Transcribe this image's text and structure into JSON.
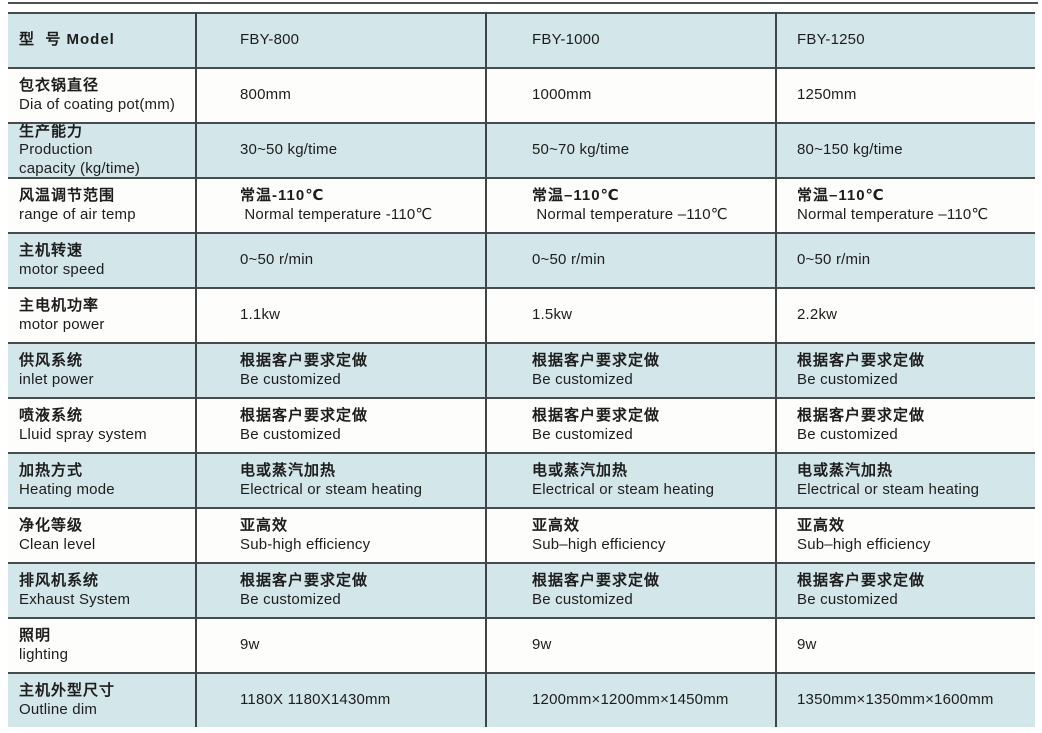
{
  "colors": {
    "row_blue": "#d3e6e9",
    "row_white": "#fdfdfb",
    "grid_border": "#474d4f",
    "text": "#1d1d1d"
  },
  "table": {
    "rows": [
      {
        "label": {
          "lines": [
            {
              "t": "型  号 Model",
              "b": true
            }
          ]
        },
        "cells": [
          {
            "lines": [
              {
                "t": "FBY-800",
                "b": false
              }
            ]
          },
          {
            "lines": [
              {
                "t": "FBY-1000",
                "b": false
              }
            ]
          },
          {
            "lines": [
              {
                "t": "FBY-1250",
                "b": false
              }
            ]
          }
        ]
      },
      {
        "label": {
          "lines": [
            {
              "t": "包衣锅直径",
              "b": true
            },
            {
              "t": "Dia of coating pot(mm)",
              "b": false
            }
          ]
        },
        "cells": [
          {
            "lines": [
              {
                "t": "800mm",
                "b": false
              }
            ]
          },
          {
            "lines": [
              {
                "t": "1000mm",
                "b": false
              }
            ]
          },
          {
            "lines": [
              {
                "t": "1250mm",
                "b": false
              }
            ]
          }
        ]
      },
      {
        "label": {
          "lines": [
            {
              "t": "生产能力",
              "b": true
            },
            {
              "t": "Production",
              "b": false
            },
            {
              "t": "capacity (kg/time)",
              "b": false
            }
          ]
        },
        "cells": [
          {
            "lines": [
              {
                "t": "30~50 kg/time",
                "b": false
              }
            ]
          },
          {
            "lines": [
              {
                "t": "50~70 kg/time",
                "b": false
              }
            ]
          },
          {
            "lines": [
              {
                "t": "80~150 kg/time",
                "b": false
              }
            ]
          }
        ]
      },
      {
        "label": {
          "lines": [
            {
              "t": "风温调节范围",
              "b": true
            },
            {
              "t": "range of air temp",
              "b": false
            }
          ]
        },
        "cells": [
          {
            "lines": [
              {
                "t": "常温-110℃",
                "b": true
              },
              {
                "t": " Normal temperature -110℃",
                "b": false
              }
            ]
          },
          {
            "lines": [
              {
                "t": "常温–110℃",
                "b": true
              },
              {
                "t": " Normal temperature –110℃",
                "b": false
              }
            ]
          },
          {
            "lines": [
              {
                "t": "常温–110℃",
                "b": true
              },
              {
                "t": "Normal temperature –110℃",
                "b": false
              }
            ]
          }
        ]
      },
      {
        "label": {
          "lines": [
            {
              "t": "主机转速",
              "b": true
            },
            {
              "t": "motor speed",
              "b": false
            }
          ]
        },
        "cells": [
          {
            "lines": [
              {
                "t": "0~50 r/min",
                "b": false
              }
            ]
          },
          {
            "lines": [
              {
                "t": "0~50 r/min",
                "b": false
              }
            ]
          },
          {
            "lines": [
              {
                "t": "0~50 r/min",
                "b": false
              }
            ]
          }
        ]
      },
      {
        "label": {
          "lines": [
            {
              "t": "主电机功率",
              "b": true
            },
            {
              "t": "motor power",
              "b": false
            }
          ]
        },
        "cells": [
          {
            "lines": [
              {
                "t": "1.1kw",
                "b": false
              }
            ]
          },
          {
            "lines": [
              {
                "t": "1.5kw",
                "b": false
              }
            ]
          },
          {
            "lines": [
              {
                "t": "2.2kw",
                "b": false
              }
            ]
          }
        ]
      },
      {
        "label": {
          "lines": [
            {
              "t": "供风系统",
              "b": true
            },
            {
              "t": "inlet power",
              "b": false
            }
          ]
        },
        "cells": [
          {
            "lines": [
              {
                "t": "根据客户要求定做",
                "b": true
              },
              {
                "t": "Be customized",
                "b": false
              }
            ]
          },
          {
            "lines": [
              {
                "t": "根据客户要求定做",
                "b": true
              },
              {
                "t": "Be customized",
                "b": false
              }
            ]
          },
          {
            "lines": [
              {
                "t": "根据客户要求定做",
                "b": true
              },
              {
                "t": "Be customized",
                "b": false
              }
            ]
          }
        ]
      },
      {
        "label": {
          "lines": [
            {
              "t": "喷液系统",
              "b": true
            },
            {
              "t": "Lluid spray system",
              "b": false
            }
          ]
        },
        "cells": [
          {
            "lines": [
              {
                "t": "根据客户要求定做",
                "b": true
              },
              {
                "t": "Be customized",
                "b": false
              }
            ]
          },
          {
            "lines": [
              {
                "t": "根据客户要求定做",
                "b": true
              },
              {
                "t": "Be customized",
                "b": false
              }
            ]
          },
          {
            "lines": [
              {
                "t": "根据客户要求定做",
                "b": true
              },
              {
                "t": "Be customized",
                "b": false
              }
            ]
          }
        ]
      },
      {
        "label": {
          "lines": [
            {
              "t": "加热方式",
              "b": true
            },
            {
              "t": "Heating mode",
              "b": false
            }
          ]
        },
        "cells": [
          {
            "lines": [
              {
                "t": "电或蒸汽加热",
                "b": true
              },
              {
                "t": "Electrical or steam heating",
                "b": false
              }
            ]
          },
          {
            "lines": [
              {
                "t": "电或蒸汽加热",
                "b": true
              },
              {
                "t": "Electrical or steam heating",
                "b": false
              }
            ]
          },
          {
            "lines": [
              {
                "t": "电或蒸汽加热",
                "b": true
              },
              {
                "t": "Electrical or steam heating",
                "b": false
              }
            ]
          }
        ]
      },
      {
        "label": {
          "lines": [
            {
              "t": "净化等级",
              "b": true
            },
            {
              "t": "Clean level",
              "b": false
            }
          ]
        },
        "cells": [
          {
            "lines": [
              {
                "t": "亚高效",
                "b": true
              },
              {
                "t": "Sub-high efficiency",
                "b": false
              }
            ]
          },
          {
            "lines": [
              {
                "t": "亚高效",
                "b": true
              },
              {
                "t": "Sub–high efficiency",
                "b": false
              }
            ]
          },
          {
            "lines": [
              {
                "t": "亚高效",
                "b": true
              },
              {
                "t": "Sub–high efficiency",
                "b": false
              }
            ]
          }
        ]
      },
      {
        "label": {
          "lines": [
            {
              "t": "排风机系统",
              "b": true
            },
            {
              "t": "Exhaust System",
              "b": false
            }
          ]
        },
        "cells": [
          {
            "lines": [
              {
                "t": "根据客户要求定做",
                "b": true
              },
              {
                "t": "Be customized",
                "b": false
              }
            ]
          },
          {
            "lines": [
              {
                "t": "根据客户要求定做",
                "b": true
              },
              {
                "t": "Be customized",
                "b": false
              }
            ]
          },
          {
            "lines": [
              {
                "t": "根据客户要求定做",
                "b": true
              },
              {
                "t": "Be customized",
                "b": false
              }
            ]
          }
        ]
      },
      {
        "label": {
          "lines": [
            {
              "t": "照明",
              "b": true
            },
            {
              "t": "lighting",
              "b": false
            }
          ]
        },
        "cells": [
          {
            "lines": [
              {
                "t": "9w",
                "b": false
              }
            ]
          },
          {
            "lines": [
              {
                "t": "9w",
                "b": false
              }
            ]
          },
          {
            "lines": [
              {
                "t": "9w",
                "b": false
              }
            ]
          }
        ]
      },
      {
        "label": {
          "lines": [
            {
              "t": "主机外型尺寸",
              "b": true
            },
            {
              "t": "Outline dim",
              "b": false
            }
          ]
        },
        "cells": [
          {
            "lines": [
              {
                "t": "1180X 1180X1430mm",
                "b": false
              }
            ]
          },
          {
            "lines": [
              {
                "t": "1200mm×1200mm×1450mm",
                "b": false
              }
            ]
          },
          {
            "lines": [
              {
                "t": "1350mm×1350mm×1600mm",
                "b": false
              }
            ]
          }
        ]
      }
    ]
  }
}
